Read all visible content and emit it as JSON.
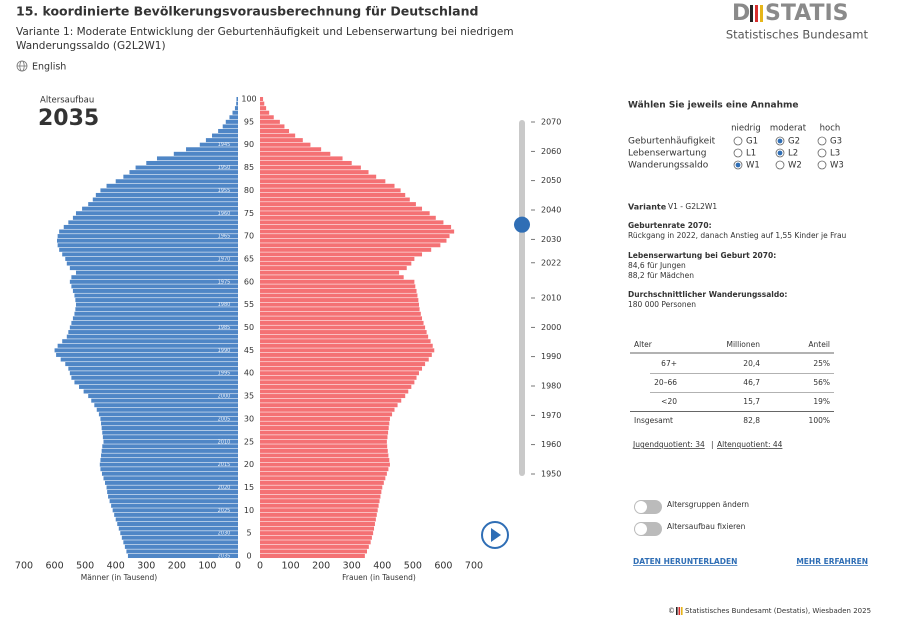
{
  "header": {
    "title": "15. koordinierte Bevölkerungsvorausberechnung für Deutschland",
    "subtitle": [
      "Variante 1: Moderate Entwicklung der Geburtenhäufigkeit und Lebenserwartung bei niedrigem",
      "Wanderungssaldo (G2L2W1)"
    ],
    "language": "English",
    "logo_prefix": "D",
    "logo_suffix": "STATIS",
    "logo_subtitle": "Statistisches Bundesamt"
  },
  "chart_data": {
    "type": "pyramid",
    "label": "Altersaufbau",
    "y": [
      0,
      1,
      2,
      3,
      4,
      5,
      6,
      7,
      8,
      9,
      10,
      11,
      12,
      13,
      14,
      15,
      16,
      17,
      18,
      19,
      20,
      21,
      22,
      23,
      24,
      25,
      26,
      27,
      28,
      29,
      30,
      31,
      32,
      33,
      34,
      35,
      36,
      37,
      38,
      39,
      40,
      41,
      42,
      43,
      44,
      45,
      46,
      47,
      48,
      49,
      50,
      51,
      52,
      53,
      54,
      55,
      56,
      57,
      58,
      59,
      60,
      61,
      62,
      63,
      64,
      65,
      66,
      67,
      68,
      69,
      70,
      71,
      72,
      73,
      74,
      75,
      76,
      77,
      78,
      79,
      80,
      81,
      82,
      83,
      84,
      85,
      86,
      87,
      88,
      89,
      90,
      91,
      92,
      93,
      94,
      95,
      96,
      97,
      98,
      99,
      100
    ],
    "ylim": [
      0,
      100
    ],
    "yticks": [
      0,
      5,
      10,
      15,
      20,
      25,
      30,
      35,
      40,
      45,
      50,
      55,
      60,
      65,
      70,
      75,
      80,
      85,
      90,
      95,
      100
    ],
    "xlim": [
      0,
      700
    ],
    "xticks": [
      0,
      100,
      200,
      300,
      400,
      500,
      600,
      700
    ],
    "cohort_labels": [
      {
        "value": 90,
        "label": "1945"
      },
      {
        "value": 85,
        "label": "1950"
      },
      {
        "value": 80,
        "label": "1955"
      },
      {
        "value": 75,
        "label": "1960"
      },
      {
        "value": 70,
        "label": "1965"
      },
      {
        "value": 65,
        "label": "1970"
      },
      {
        "value": 60,
        "label": "1975"
      },
      {
        "value": 55,
        "label": "1980"
      },
      {
        "value": 50,
        "label": "1985"
      },
      {
        "value": 45,
        "label": "1990"
      },
      {
        "value": 40,
        "label": "1995"
      },
      {
        "value": 35,
        "label": "2000"
      },
      {
        "value": 30,
        "label": "2005"
      },
      {
        "value": 25,
        "label": "2010"
      },
      {
        "value": 20,
        "label": "2015"
      },
      {
        "value": 15,
        "label": "2020"
      },
      {
        "value": 10,
        "label": "2025"
      },
      {
        "value": 5,
        "label": "2030"
      },
      {
        "value": 0,
        "label": "2035"
      }
    ],
    "series": [
      {
        "name": "Männer (in Tausend)",
        "color": "#4f86c6",
        "side": "left",
        "values": [
          360,
          365,
          370,
          375,
          380,
          385,
          390,
          395,
          400,
          405,
          410,
          415,
          420,
          425,
          428,
          430,
          435,
          440,
          445,
          450,
          452,
          450,
          448,
          446,
          444,
          440,
          442,
          444,
          446,
          448,
          450,
          455,
          462,
          470,
          480,
          490,
          505,
          520,
          535,
          545,
          550,
          555,
          565,
          580,
          595,
          600,
          590,
          575,
          560,
          555,
          550,
          545,
          540,
          535,
          532,
          530,
          532,
          535,
          540,
          545,
          550,
          545,
          530,
          550,
          560,
          565,
          575,
          585,
          590,
          592,
          590,
          585,
          570,
          555,
          540,
          530,
          510,
          490,
          475,
          465,
          450,
          430,
          400,
          375,
          355,
          335,
          300,
          265,
          210,
          170,
          125,
          105,
          85,
          65,
          50,
          40,
          28,
          18,
          10,
          6,
          5
        ]
      },
      {
        "name": "Frauen (in Tausend)",
        "color": "#f47174",
        "side": "right",
        "values": [
          343,
          350,
          356,
          362,
          366,
          370,
          373,
          376,
          379,
          382,
          385,
          388,
          391,
          394,
          397,
          400,
          405,
          410,
          415,
          420,
          425,
          423,
          420,
          418,
          416,
          415,
          417,
          419,
          421,
          423,
          425,
          432,
          440,
          450,
          462,
          475,
          485,
          495,
          505,
          512,
          520,
          530,
          540,
          552,
          562,
          570,
          565,
          558,
          550,
          545,
          540,
          535,
          530,
          526,
          522,
          520,
          518,
          515,
          512,
          508,
          505,
          470,
          455,
          480,
          495,
          505,
          530,
          560,
          590,
          610,
          620,
          635,
          625,
          600,
          575,
          555,
          530,
          510,
          490,
          475,
          460,
          440,
          410,
          380,
          355,
          330,
          300,
          270,
          230,
          200,
          165,
          140,
          115,
          95,
          80,
          65,
          45,
          30,
          20,
          14,
          10
        ]
      }
    ]
  },
  "time_slider": {
    "ylim": [
      1950,
      2070
    ],
    "yticks": [
      1950,
      1960,
      1970,
      1980,
      1990,
      2000,
      2010,
      2022,
      2030,
      2040,
      2050,
      2060,
      2070
    ],
    "value": 2035
  },
  "assumptions": {
    "title": "Wählen Sie jeweils eine Annahme",
    "levels": [
      "niedrig",
      "moderat",
      "hoch"
    ],
    "rows": [
      {
        "label": "Geburtenhäufigkeit",
        "options": [
          "G1",
          "G2",
          "G3"
        ],
        "selected": 1
      },
      {
        "label": "Lebenserwartung",
        "options": [
          "L1",
          "L2",
          "L3"
        ],
        "selected": 1
      },
      {
        "label": "Wanderungssaldo",
        "options": [
          "W1",
          "W2",
          "W3"
        ],
        "selected": 0
      }
    ]
  },
  "variant": {
    "label": "Variante",
    "value": "V1 - G2L2W1"
  },
  "info": [
    {
      "heading": "Geburtenrate 2070:",
      "lines": [
        "Rückgang in 2022, danach Anstieg auf 1,55 Kinder je Frau"
      ]
    },
    {
      "heading": "Lebenserwartung bei Geburt 2070:",
      "lines": [
        "84,6 für Jungen",
        "88,2 für Mädchen"
      ]
    },
    {
      "heading": "Durchschnittlicher Wanderungssaldo:",
      "lines": [
        "180 000 Personen"
      ]
    }
  ],
  "table": {
    "columns": [
      "Alter",
      "Millionen",
      "Anteil"
    ],
    "rows": [
      [
        "67+",
        "20,4",
        "25%"
      ],
      [
        "20–66",
        "46,7",
        "56%"
      ],
      [
        "<20",
        "15,7",
        "19%"
      ],
      [
        "Insgesamt",
        "82,8",
        "100%"
      ]
    ]
  },
  "quotients": [
    "Jugendquotient: 34",
    "|",
    "Altenquotient: 44"
  ],
  "toggles": [
    "Altersgruppen ändern",
    "Altersaufbau fixieren"
  ],
  "links": [
    "DATEN HERUNTERLADEN",
    "MEHR ERFAHREN"
  ],
  "footer": {
    "copyright": "©",
    "text": "Statistisches Bundesamt (Destatis), Wiesbaden 2025"
  }
}
